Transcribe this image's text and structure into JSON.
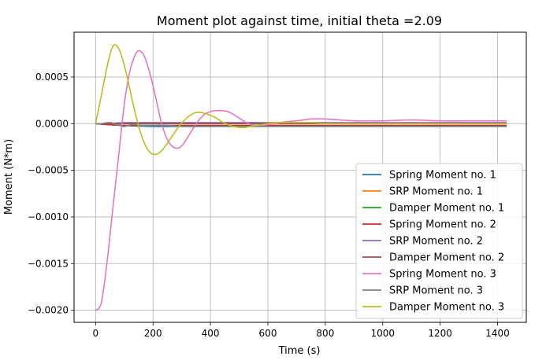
{
  "chart_data": {
    "type": "line",
    "title": "Moment plot against time, initial theta =2.09",
    "xlabel": "Time (s)",
    "ylabel": "Moment (N*m)",
    "xlim": [
      -75,
      1500
    ],
    "ylim": [
      -0.00213,
      0.00098
    ],
    "xticks": [
      0,
      200,
      400,
      600,
      800,
      1000,
      1200,
      1400
    ],
    "xtick_labels": [
      "0",
      "200",
      "400",
      "600",
      "800",
      "1000",
      "1200",
      "1400"
    ],
    "yticks": [
      0.0005,
      0.0,
      -0.0005,
      -0.001,
      -0.0015,
      -0.002
    ],
    "ytick_labels": [
      "0.0005",
      "0.0000",
      "−0.0005",
      "−0.0010",
      "−0.0015",
      "−0.0020"
    ],
    "grid": true,
    "legend_position": "lower-right",
    "series": [
      {
        "name": "Spring Moment no. 1",
        "color": "#1f77b4",
        "x": [
          0,
          40,
          100,
          200,
          300,
          400,
          500,
          700,
          900,
          1100,
          1300,
          1430
        ],
        "y": [
          0,
          -1e-05,
          -2e-05,
          -3e-05,
          -3e-05,
          -3e-05,
          -3e-05,
          -3e-05,
          -3e-05,
          -3e-05,
          -3e-05,
          -3e-05
        ]
      },
      {
        "name": "SRP Moment no. 1",
        "color": "#ff7f0e",
        "x": [
          0,
          40,
          100,
          200,
          300,
          400,
          500,
          700,
          900,
          1100,
          1300,
          1430
        ],
        "y": [
          0,
          0,
          1e-05,
          1e-05,
          1e-05,
          1e-05,
          1e-05,
          1e-05,
          1e-05,
          1e-05,
          1e-05,
          1e-05
        ]
      },
      {
        "name": "Damper Moment no. 1",
        "color": "#2ca02c",
        "x": [
          0,
          40,
          100,
          200,
          300,
          400,
          500,
          700,
          900,
          1100,
          1300,
          1430
        ],
        "y": [
          0,
          0,
          0,
          0,
          0,
          0,
          0,
          0,
          0,
          0,
          0,
          0
        ]
      },
      {
        "name": "Spring Moment no. 2",
        "color": "#d62728",
        "x": [
          0,
          40,
          100,
          200,
          300,
          400,
          500,
          700,
          900,
          1100,
          1300,
          1430
        ],
        "y": [
          0,
          -1e-05,
          -2e-05,
          -2e-05,
          -2e-05,
          -2e-05,
          -2e-05,
          -2e-05,
          -2e-05,
          -2e-05,
          -2e-05,
          -2e-05
        ]
      },
      {
        "name": "SRP Moment no. 2",
        "color": "#9467bd",
        "x": [
          0,
          40,
          100,
          200,
          300,
          400,
          500,
          700,
          900,
          1100,
          1300,
          1430
        ],
        "y": [
          0,
          0,
          1e-05,
          1e-05,
          1e-05,
          1e-05,
          1e-05,
          1e-05,
          1e-05,
          1e-05,
          1e-05,
          1e-05
        ]
      },
      {
        "name": "Damper Moment no. 2",
        "color": "#8c564b",
        "x": [
          0,
          40,
          100,
          200,
          300,
          400,
          500,
          700,
          900,
          1100,
          1300,
          1430
        ],
        "y": [
          0,
          0,
          0,
          0,
          0,
          0,
          0,
          0,
          0,
          0,
          0,
          0
        ]
      },
      {
        "name": "Spring Moment no. 3",
        "color": "#e377c2",
        "x": [
          0,
          20,
          40,
          60,
          80,
          100,
          120,
          140,
          155,
          170,
          190,
          210,
          230,
          250,
          270,
          290,
          305,
          320,
          340,
          360,
          380,
          400,
          420,
          440,
          460,
          480,
          500,
          520,
          540,
          560,
          580,
          600,
          630,
          660,
          700,
          750,
          800,
          850,
          900,
          950,
          1000,
          1100,
          1200,
          1300,
          1430
        ],
        "y": [
          -0.002,
          -0.00192,
          -0.00148,
          -0.00091,
          -0.00035,
          0.00021,
          0.00057,
          0.00075,
          0.00078,
          0.00072,
          0.00053,
          0.00027,
          0.0,
          -0.00017,
          -0.00025,
          -0.00026,
          -0.00022,
          -0.00015,
          -5e-05,
          4e-05,
          0.0001,
          0.00013,
          0.00014,
          0.00014,
          0.00013,
          0.0001,
          6e-05,
          2e-05,
          -1e-05,
          -2e-05,
          -2e-05,
          -1e-05,
          0.0,
          2e-05,
          3e-05,
          5e-05,
          5e-05,
          4e-05,
          3e-05,
          3e-05,
          3e-05,
          4e-05,
          3e-05,
          3e-05,
          3e-05
        ]
      },
      {
        "name": "SRP Moment no. 3",
        "color": "#7f7f7f",
        "x": [
          0,
          20,
          40,
          55,
          70,
          85,
          100,
          130,
          160,
          200,
          250,
          300,
          400,
          500,
          600,
          700,
          800,
          900,
          1000,
          1100,
          1200,
          1300,
          1430
        ],
        "y": [
          0,
          0,
          1e-05,
          1e-05,
          -1e-05,
          -2e-05,
          -3e-05,
          -1e-05,
          -2e-05,
          -2e-05,
          -2e-05,
          -3e-05,
          -3e-05,
          -3e-05,
          -3e-05,
          -3e-05,
          -3e-05,
          -3e-05,
          -3e-05,
          -3e-05,
          -3e-05,
          -3e-05,
          -3e-05
        ]
      },
      {
        "name": "Damper Moment no. 3",
        "color": "#bcbd22",
        "x": [
          0,
          10,
          20,
          30,
          45,
          60,
          75,
          90,
          110,
          130,
          150,
          170,
          190,
          210,
          230,
          250,
          270,
          290,
          310,
          330,
          350,
          365,
          380,
          400,
          420,
          440,
          460,
          480,
          500,
          520,
          540,
          560,
          580,
          600,
          630,
          660,
          700,
          750,
          800,
          900,
          1000,
          1100,
          1200,
          1300,
          1430
        ],
        "y": [
          0,
          0.00015,
          0.0003,
          0.00046,
          0.00068,
          0.00083,
          0.00083,
          0.00073,
          0.0005,
          0.00022,
          -3e-05,
          -0.00021,
          -0.00031,
          -0.00033,
          -0.00029,
          -0.00021,
          -0.00012,
          -3e-05,
          4e-05,
          9e-05,
          0.00012,
          0.00012,
          0.00011,
          9e-05,
          6e-05,
          2e-05,
          -1e-05,
          -3e-05,
          -4e-05,
          -4e-05,
          -3e-05,
          -2e-05,
          -1e-05,
          0.0,
          1e-05,
          1e-05,
          1e-05,
          1e-05,
          0.0,
          0.0,
          0.0,
          0.0,
          0.0,
          0.0,
          0.0
        ]
      }
    ]
  }
}
